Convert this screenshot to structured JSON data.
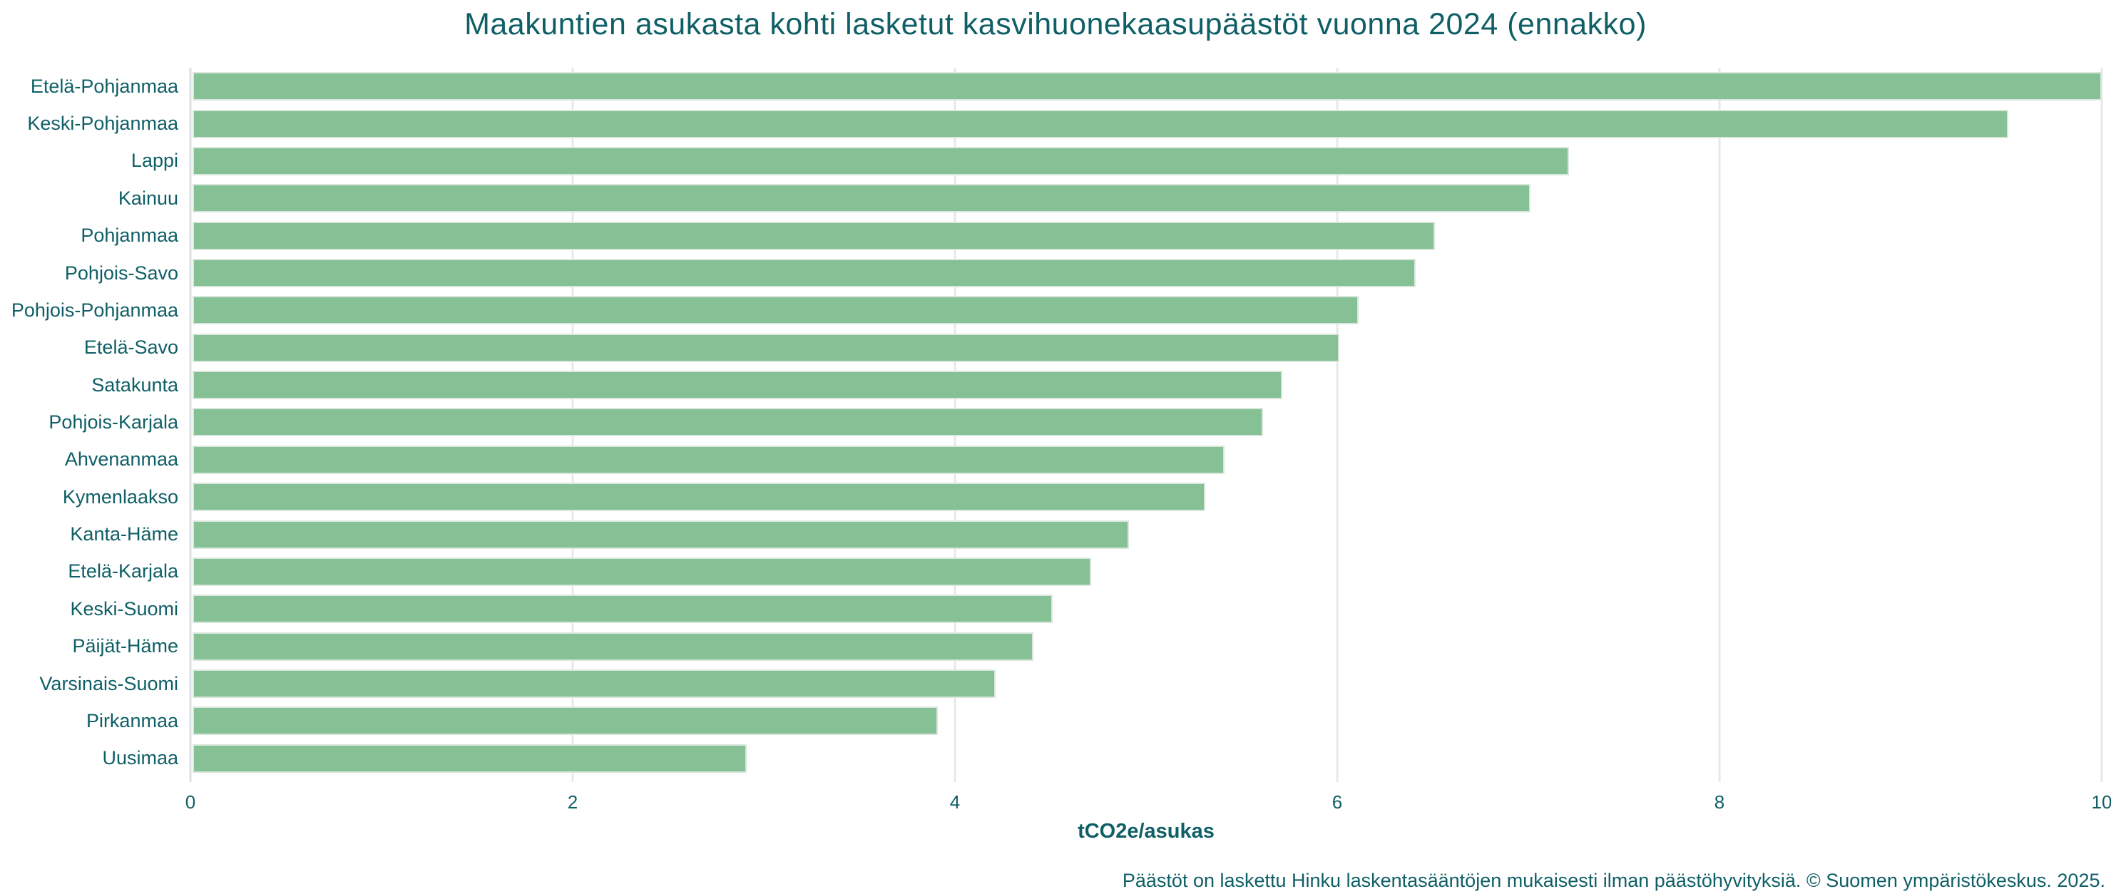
{
  "title": "Maakuntien asukasta kohti lasketut kasvihuonekaasupäästöt vuonna 2024 (ennakko)",
  "chart_data": {
    "type": "bar",
    "orientation": "horizontal",
    "title": "Maakuntien asukasta kohti lasketut kasvihuonekaasupäästöt vuonna 2024 (ennakko)",
    "categories": [
      "Etelä-Pohjanmaa",
      "Keski-Pohjanmaa",
      "Lappi",
      "Kainuu",
      "Pohjanmaa",
      "Pohjois-Savo",
      "Pohjois-Pohjanmaa",
      "Etelä-Savo",
      "Satakunta",
      "Pohjois-Karjala",
      "Ahvenanmaa",
      "Kymenlaakso",
      "Kanta-Häme",
      "Etelä-Karjala",
      "Keski-Suomi",
      "Päijät-Häme",
      "Varsinais-Suomi",
      "Pirkanmaa",
      "Uusimaa"
    ],
    "values": [
      10.0,
      9.5,
      7.2,
      7.0,
      6.5,
      6.4,
      6.1,
      6.0,
      5.7,
      5.6,
      5.4,
      5.3,
      4.9,
      4.7,
      4.5,
      4.4,
      4.2,
      3.9,
      2.9
    ],
    "xlabel": "tCO2e/asukas",
    "ylabel": "",
    "xlim": [
      0,
      10
    ],
    "xticks": [
      0,
      2,
      4,
      6,
      8,
      10
    ],
    "xtick_labels": [
      "0",
      "2",
      "4",
      "6",
      "8",
      "10"
    ],
    "grid": true,
    "legend": "none"
  },
  "footer": {
    "note": "Päästöt on laskettu Hinku laskentasääntöjen mukaisesti ilman päästöhyvityksiä. © Suomen ympäristökeskus. 2025."
  },
  "colors": {
    "bar_fill": "#85c194",
    "bar_border": "#dae7dd",
    "gridline": "#e8e8e8",
    "zeroline": "#dbe2e8",
    "text": "#0f5f66",
    "background": "#ffffff"
  }
}
